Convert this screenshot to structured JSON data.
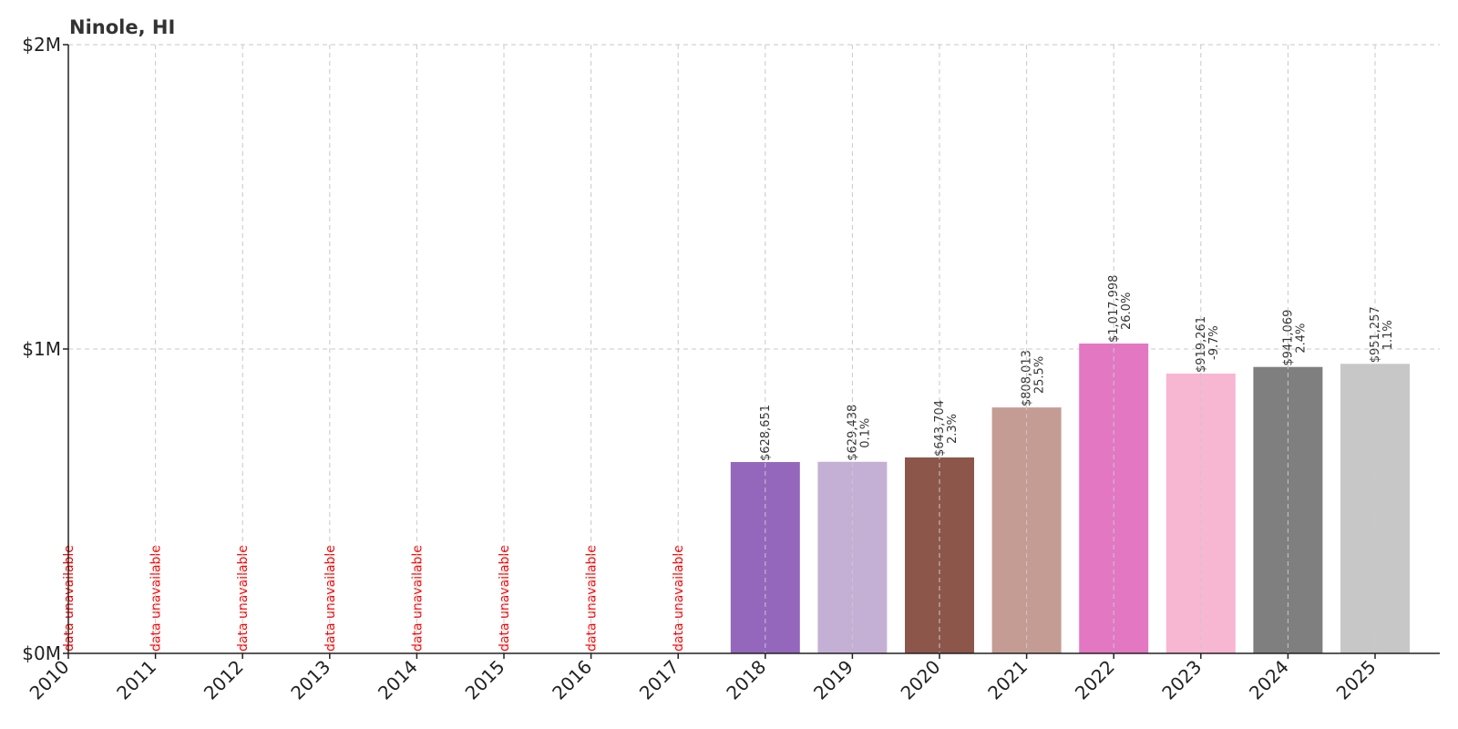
{
  "chart_data": {
    "type": "bar",
    "title": "Ninole, HI",
    "xlabel": "",
    "ylabel": "",
    "ylim": [
      0,
      2000000
    ],
    "yticks": [
      {
        "value": 0,
        "label": "$0M"
      },
      {
        "value": 1000000,
        "label": "$1M"
      },
      {
        "value": 2000000,
        "label": "$2M"
      }
    ],
    "grid": true,
    "unavailable_text": "data unavailable",
    "categories": [
      "2010",
      "2011",
      "2012",
      "2013",
      "2014",
      "2015",
      "2016",
      "2017",
      "2018",
      "2019",
      "2020",
      "2021",
      "2022",
      "2023",
      "2024",
      "2025"
    ],
    "values": [
      null,
      null,
      null,
      null,
      null,
      null,
      null,
      null,
      628651,
      629438,
      643704,
      808013,
      1017998,
      919261,
      941069,
      951257
    ],
    "value_labels": [
      "",
      "",
      "",
      "",
      "",
      "",
      "",
      "",
      "$628,651",
      "$629,438",
      "$643,704",
      "$808,013",
      "$1,017,998",
      "$919,261",
      "$941,069",
      "$951,257"
    ],
    "change_labels": [
      "",
      "",
      "",
      "",
      "",
      "",
      "",
      "",
      "",
      "0.1%",
      "2.3%",
      "25.5%",
      "26.0%",
      "-9.7%",
      "2.4%",
      "1.1%"
    ],
    "colors": [
      "#1f77b4",
      "#aec7e8",
      "#ff7f0e",
      "#ffbb78",
      "#2ca02c",
      "#98df8a",
      "#d62728",
      "#ff9896",
      "#9467bd",
      "#c5b0d5",
      "#8c564b",
      "#c49c94",
      "#e377c2",
      "#f7b6d2",
      "#7f7f7f",
      "#c7c7c7"
    ]
  }
}
